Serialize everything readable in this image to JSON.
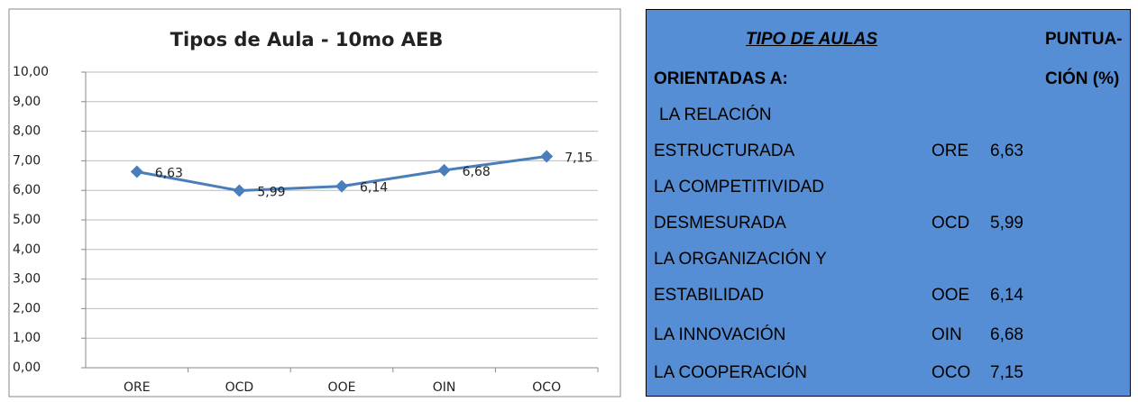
{
  "chart_data": {
    "type": "line",
    "title": "Tipos de Aula - 10mo AEB",
    "categories": [
      "ORE",
      "OCD",
      "OOE",
      "OIN",
      "OCO"
    ],
    "values": [
      6.63,
      5.99,
      6.14,
      6.68,
      7.15
    ],
    "value_labels": [
      "6,63",
      "5,99",
      "6,14",
      "6,68",
      "7,15"
    ],
    "color": "#4a7ebb",
    "ylim": [
      0,
      10
    ],
    "yticks": [
      {
        "value": 0,
        "label": "0,00"
      },
      {
        "value": 1,
        "label": "1,00"
      },
      {
        "value": 2,
        "label": "2,00"
      },
      {
        "value": 3,
        "label": "3,00"
      },
      {
        "value": 4,
        "label": "4,00"
      },
      {
        "value": 5,
        "label": "5,00"
      },
      {
        "value": 6,
        "label": "6,00"
      },
      {
        "value": 7,
        "label": "7,00"
      },
      {
        "value": 8,
        "label": "8,00"
      },
      {
        "value": 9,
        "label": "9,00"
      },
      {
        "value": 10,
        "label": "10,00"
      }
    ],
    "grid": true
  },
  "table": {
    "header": [
      [
        "TIPO DE AULAS",
        "PUNTUA-"
      ],
      [
        "ORIENTADAS A:",
        "CIÓN (%)"
      ]
    ],
    "rows": [
      [
        "LA RELACIÓN"
      ],
      [
        "ESTRUCTURADA",
        "ORE",
        "6,63"
      ],
      [
        "LA COMPETITIVIDAD"
      ],
      [
        "DESMESURADA",
        "OCD",
        "5,99"
      ],
      [
        "LA ORGANIZACIÓN Y"
      ],
      [
        "ESTABILIDAD",
        "OOE",
        "6,14"
      ],
      [
        "LA INNOVACIÓN",
        "OIN",
        "6,68"
      ],
      [
        "LA COOPERACIÓN",
        "OCO",
        "7,15"
      ]
    ]
  }
}
